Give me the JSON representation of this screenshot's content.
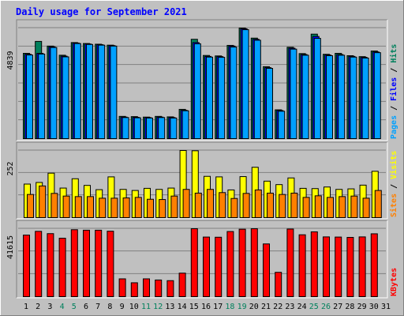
{
  "chart_data": {
    "type": "bar",
    "title": "Daily usage for September 2021",
    "categories": [
      "1",
      "2",
      "3",
      "4",
      "5",
      "6",
      "7",
      "8",
      "9",
      "10",
      "11",
      "12",
      "13",
      "14",
      "15",
      "16",
      "17",
      "18",
      "19",
      "20",
      "21",
      "22",
      "23",
      "24",
      "25",
      "26",
      "27",
      "28",
      "29",
      "30",
      "31"
    ],
    "weekend_days": [
      "4",
      "5",
      "11",
      "12",
      "18",
      "19",
      "25",
      "26"
    ],
    "panels": [
      {
        "id": "hits-files-pages",
        "ymax_label": "4839",
        "legend": [
          {
            "name": "Pages",
            "color": "#00a0ff"
          },
          {
            "name": "Files",
            "color": "#0000ff"
          },
          {
            "name": "Hits",
            "color": "#00805c"
          }
        ],
        "series": [
          {
            "name": "Hits",
            "color": "#00805c",
            "values": [
              3640,
              4150,
              3950,
              3560,
              4100,
              4060,
              4030,
              3990,
              950,
              940,
              920,
              950,
              930,
              1250,
              4240,
              3550,
              3530,
              3980,
              4720,
              4290,
              3070,
              1230,
              3900,
              3630,
              4460,
              3600,
              3640,
              3540,
              3500,
              3740,
              0
            ]
          },
          {
            "name": "Files",
            "color": "#0000ff",
            "values": [
              3600,
              3640,
              3920,
              3520,
              4080,
              4040,
              4010,
              3970,
              920,
              910,
              900,
              920,
              900,
              1210,
              4100,
              3510,
              3500,
              3950,
              4690,
              4240,
              3030,
              1200,
              3860,
              3590,
              4360,
              3570,
              3590,
              3510,
              3470,
              3700,
              0
            ]
          },
          {
            "name": "Pages",
            "color": "#00a0ff",
            "values": [
              3570,
              3610,
              3890,
              3490,
              4060,
              4020,
              3990,
              3950,
              900,
              890,
              880,
              900,
              880,
              1190,
              4050,
              3480,
              3470,
              3910,
              4650,
              4200,
              3000,
              1170,
              3820,
              3560,
              4280,
              3540,
              3560,
              3480,
              3440,
              3670,
              0
            ]
          }
        ]
      },
      {
        "id": "visits-sites",
        "ymax_label": "252",
        "legend": [
          {
            "name": "Sites",
            "color": "#ff8000"
          },
          {
            "name": "Visits",
            "color": "#ffff00"
          }
        ],
        "series": [
          {
            "name": "Visits",
            "color": "#ffff00",
            "values": [
              126,
              132,
              167,
              111,
              146,
              121,
              105,
              153,
              106,
              102,
              110,
              106,
              111,
              252,
              251,
              155,
              153,
              104,
              154,
              189,
              137,
              124,
              149,
              110,
              109,
              115,
              106,
              108,
              122,
              174,
              0
            ]
          },
          {
            "name": "Sites",
            "color": "#ff8000",
            "values": [
              87,
              119,
              91,
              81,
              79,
              79,
              73,
              73,
              74,
              76,
              69,
              68,
              81,
              106,
              92,
              106,
              94,
              72,
              91,
              104,
              92,
              87,
              92,
              76,
              82,
              76,
              79,
              81,
              73,
              102,
              0
            ]
          }
        ]
      },
      {
        "id": "kbytes",
        "ymax_label": "41615",
        "legend": [
          {
            "name": "KBytes",
            "color": "#ff0000"
          }
        ],
        "series": [
          {
            "name": "KBytes",
            "color": "#ff0000",
            "values": [
              37700,
              40000,
              38600,
              35800,
              41000,
              40700,
              40700,
              40100,
              10900,
              8500,
              10900,
              10200,
              9800,
              14400,
              41615,
              36500,
              36400,
              39900,
              41300,
              41600,
              32300,
              14900,
              41400,
              37900,
              39700,
              36600,
              36500,
              36300,
              36600,
              38500,
              0
            ]
          }
        ]
      }
    ]
  }
}
